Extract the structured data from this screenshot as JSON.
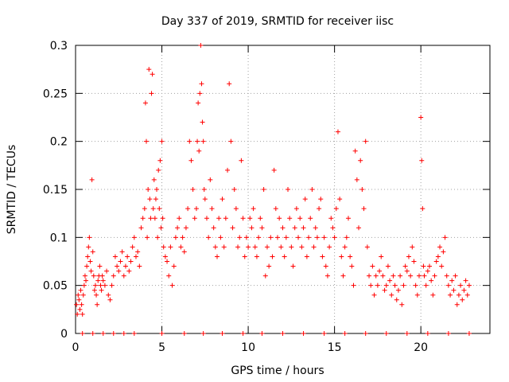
{
  "chart_data": {
    "type": "scatter",
    "title": "Day 337 of 2019, SRMTID for receiver iisc",
    "xlabel": "GPS time / hours",
    "ylabel": "SRMTID / TECUs",
    "xlim": [
      0,
      24
    ],
    "ylim": [
      0,
      0.3
    ],
    "xticks": [
      0,
      5,
      10,
      15,
      20
    ],
    "xtick_labels": [
      "0",
      "5",
      "10",
      "15",
      "20"
    ],
    "yticks": [
      0,
      0.05,
      0.1,
      0.15,
      0.2,
      0.25,
      0.3
    ],
    "ytick_labels": [
      "0",
      "0.05",
      "0.1",
      "0.15",
      "0.2",
      "0.25",
      "0.3"
    ],
    "grid": true,
    "marker": "+",
    "color": "#ff0000",
    "series": [
      {
        "name": "SRMTID",
        "points": [
          [
            0.05,
            0.03
          ],
          [
            0.1,
            0.02
          ],
          [
            0.15,
            0.04
          ],
          [
            0.2,
            0.035
          ],
          [
            0.25,
            0.025
          ],
          [
            0.3,
            0.045
          ],
          [
            0.35,
            0.03
          ],
          [
            0.4,
            0.02
          ],
          [
            0.45,
            0.04
          ],
          [
            0.5,
            0.05
          ],
          [
            0.55,
            0.06
          ],
          [
            0.6,
            0.055
          ],
          [
            0.65,
            0.07
          ],
          [
            0.7,
            0.08
          ],
          [
            0.75,
            0.09
          ],
          [
            0.8,
            0.1
          ],
          [
            0.85,
            0.075
          ],
          [
            0.9,
            0.065
          ],
          [
            0.95,
            0.16
          ],
          [
            1.0,
            0.085
          ],
          [
            1.05,
            0.06
          ],
          [
            1.1,
            0.045
          ],
          [
            1.15,
            0.05
          ],
          [
            1.2,
            0.04
          ],
          [
            1.25,
            0.03
          ],
          [
            1.3,
            0.055
          ],
          [
            1.35,
            0.06
          ],
          [
            1.4,
            0.07
          ],
          [
            1.45,
            0.05
          ],
          [
            1.5,
            0.045
          ],
          [
            1.55,
            0.06
          ],
          [
            1.6,
            0.055
          ],
          [
            1.7,
            0.05
          ],
          [
            1.8,
            0.065
          ],
          [
            1.9,
            0.04
          ],
          [
            2.0,
            0.035
          ],
          [
            2.1,
            0.05
          ],
          [
            2.2,
            0.06
          ],
          [
            2.3,
            0.08
          ],
          [
            2.4,
            0.07
          ],
          [
            2.5,
            0.065
          ],
          [
            2.6,
            0.075
          ],
          [
            2.7,
            0.085
          ],
          [
            2.8,
            0.06
          ],
          [
            2.9,
            0.07
          ],
          [
            3.0,
            0.08
          ],
          [
            3.1,
            0.065
          ],
          [
            3.2,
            0.075
          ],
          [
            3.3,
            0.09
          ],
          [
            3.4,
            0.1
          ],
          [
            3.5,
            0.08
          ],
          [
            3.6,
            0.085
          ],
          [
            3.7,
            0.07
          ],
          [
            3.8,
            0.11
          ],
          [
            3.9,
            0.12
          ],
          [
            4.0,
            0.13
          ],
          [
            4.05,
            0.24
          ],
          [
            4.1,
            0.2
          ],
          [
            4.15,
            0.1
          ],
          [
            4.2,
            0.15
          ],
          [
            4.25,
            0.275
          ],
          [
            4.3,
            0.14
          ],
          [
            4.35,
            0.12
          ],
          [
            4.4,
            0.25
          ],
          [
            4.45,
            0.27
          ],
          [
            4.5,
            0.13
          ],
          [
            4.55,
            0.16
          ],
          [
            4.6,
            0.12
          ],
          [
            4.65,
            0.14
          ],
          [
            4.7,
            0.15
          ],
          [
            4.75,
            0.1
          ],
          [
            4.8,
            0.17
          ],
          [
            4.85,
            0.13
          ],
          [
            4.9,
            0.18
          ],
          [
            4.95,
            0.11
          ],
          [
            5.0,
            0.2
          ],
          [
            5.05,
            0.12
          ],
          [
            5.1,
            0.09
          ],
          [
            5.2,
            0.08
          ],
          [
            5.3,
            0.075
          ],
          [
            5.4,
            0.06
          ],
          [
            5.5,
            0.09
          ],
          [
            5.6,
            0.05
          ],
          [
            5.7,
            0.07
          ],
          [
            5.8,
            0.1
          ],
          [
            5.9,
            0.11
          ],
          [
            6.0,
            0.12
          ],
          [
            6.1,
            0.09
          ],
          [
            6.2,
            0.1
          ],
          [
            6.3,
            0.085
          ],
          [
            6.4,
            0.11
          ],
          [
            6.5,
            0.13
          ],
          [
            6.6,
            0.2
          ],
          [
            6.7,
            0.18
          ],
          [
            6.8,
            0.15
          ],
          [
            6.9,
            0.12
          ],
          [
            7.0,
            0.13
          ],
          [
            7.05,
            0.2
          ],
          [
            7.1,
            0.24
          ],
          [
            7.15,
            0.19
          ],
          [
            7.2,
            0.25
          ],
          [
            7.25,
            0.3
          ],
          [
            7.3,
            0.26
          ],
          [
            7.35,
            0.22
          ],
          [
            7.4,
            0.2
          ],
          [
            7.45,
            0.15
          ],
          [
            7.5,
            0.14
          ],
          [
            7.6,
            0.12
          ],
          [
            7.7,
            0.1
          ],
          [
            7.8,
            0.16
          ],
          [
            7.9,
            0.13
          ],
          [
            8.0,
            0.11
          ],
          [
            8.1,
            0.09
          ],
          [
            8.2,
            0.08
          ],
          [
            8.3,
            0.12
          ],
          [
            8.4,
            0.1
          ],
          [
            8.5,
            0.14
          ],
          [
            8.6,
            0.09
          ],
          [
            8.7,
            0.12
          ],
          [
            8.8,
            0.17
          ],
          [
            8.9,
            0.26
          ],
          [
            9.0,
            0.2
          ],
          [
            9.1,
            0.11
          ],
          [
            9.2,
            0.15
          ],
          [
            9.3,
            0.13
          ],
          [
            9.4,
            0.09
          ],
          [
            9.5,
            0.1
          ],
          [
            9.6,
            0.18
          ],
          [
            9.7,
            0.12
          ],
          [
            9.8,
            0.08
          ],
          [
            9.9,
            0.1
          ],
          [
            10.0,
            0.09
          ],
          [
            10.1,
            0.12
          ],
          [
            10.2,
            0.11
          ],
          [
            10.3,
            0.13
          ],
          [
            10.4,
            0.09
          ],
          [
            10.5,
            0.08
          ],
          [
            10.6,
            0.1
          ],
          [
            10.7,
            0.12
          ],
          [
            10.8,
            0.11
          ],
          [
            10.9,
            0.15
          ],
          [
            11.0,
            0.06
          ],
          [
            11.1,
            0.09
          ],
          [
            11.2,
            0.07
          ],
          [
            11.3,
            0.1
          ],
          [
            11.4,
            0.08
          ],
          [
            11.5,
            0.17
          ],
          [
            11.6,
            0.13
          ],
          [
            11.7,
            0.1
          ],
          [
            11.8,
            0.12
          ],
          [
            11.9,
            0.09
          ],
          [
            12.0,
            0.11
          ],
          [
            12.1,
            0.08
          ],
          [
            12.2,
            0.1
          ],
          [
            12.3,
            0.15
          ],
          [
            12.4,
            0.12
          ],
          [
            12.5,
            0.09
          ],
          [
            12.6,
            0.07
          ],
          [
            12.7,
            0.11
          ],
          [
            12.8,
            0.13
          ],
          [
            12.9,
            0.1
          ],
          [
            13.0,
            0.12
          ],
          [
            13.1,
            0.09
          ],
          [
            13.2,
            0.11
          ],
          [
            13.3,
            0.14
          ],
          [
            13.4,
            0.08
          ],
          [
            13.5,
            0.1
          ],
          [
            13.6,
            0.12
          ],
          [
            13.7,
            0.15
          ],
          [
            13.8,
            0.09
          ],
          [
            13.9,
            0.11
          ],
          [
            14.0,
            0.1
          ],
          [
            14.1,
            0.13
          ],
          [
            14.2,
            0.14
          ],
          [
            14.3,
            0.08
          ],
          [
            14.4,
            0.1
          ],
          [
            14.5,
            0.07
          ],
          [
            14.6,
            0.06
          ],
          [
            14.7,
            0.09
          ],
          [
            14.8,
            0.12
          ],
          [
            14.9,
            0.11
          ],
          [
            15.0,
            0.1
          ],
          [
            15.1,
            0.13
          ],
          [
            15.2,
            0.21
          ],
          [
            15.3,
            0.14
          ],
          [
            15.4,
            0.08
          ],
          [
            15.5,
            0.06
          ],
          [
            15.6,
            0.09
          ],
          [
            15.7,
            0.1
          ],
          [
            15.8,
            0.12
          ],
          [
            15.9,
            0.08
          ],
          [
            16.0,
            0.07
          ],
          [
            16.1,
            0.05
          ],
          [
            16.2,
            0.19
          ],
          [
            16.3,
            0.16
          ],
          [
            16.4,
            0.11
          ],
          [
            16.5,
            0.18
          ],
          [
            16.6,
            0.15
          ],
          [
            16.7,
            0.13
          ],
          [
            16.8,
            0.2
          ],
          [
            16.9,
            0.09
          ],
          [
            17.0,
            0.06
          ],
          [
            17.1,
            0.05
          ],
          [
            17.2,
            0.07
          ],
          [
            17.3,
            0.04
          ],
          [
            17.4,
            0.06
          ],
          [
            17.5,
            0.05
          ],
          [
            17.6,
            0.065
          ],
          [
            17.7,
            0.08
          ],
          [
            17.8,
            0.06
          ],
          [
            17.9,
            0.045
          ],
          [
            18.0,
            0.05
          ],
          [
            18.1,
            0.07
          ],
          [
            18.2,
            0.055
          ],
          [
            18.3,
            0.04
          ],
          [
            18.4,
            0.06
          ],
          [
            18.5,
            0.05
          ],
          [
            18.6,
            0.035
          ],
          [
            18.7,
            0.045
          ],
          [
            18.8,
            0.06
          ],
          [
            18.9,
            0.03
          ],
          [
            19.0,
            0.05
          ],
          [
            19.1,
            0.07
          ],
          [
            19.2,
            0.065
          ],
          [
            19.3,
            0.08
          ],
          [
            19.4,
            0.06
          ],
          [
            19.5,
            0.09
          ],
          [
            19.6,
            0.075
          ],
          [
            19.7,
            0.05
          ],
          [
            19.8,
            0.04
          ],
          [
            19.9,
            0.06
          ],
          [
            20.0,
            0.225
          ],
          [
            20.05,
            0.18
          ],
          [
            20.1,
            0.13
          ],
          [
            20.15,
            0.07
          ],
          [
            20.2,
            0.06
          ],
          [
            20.3,
            0.05
          ],
          [
            20.4,
            0.065
          ],
          [
            20.5,
            0.07
          ],
          [
            20.6,
            0.055
          ],
          [
            20.7,
            0.04
          ],
          [
            20.8,
            0.06
          ],
          [
            20.9,
            0.075
          ],
          [
            21.0,
            0.08
          ],
          [
            21.1,
            0.09
          ],
          [
            21.2,
            0.07
          ],
          [
            21.3,
            0.085
          ],
          [
            21.4,
            0.1
          ],
          [
            21.5,
            0.06
          ],
          [
            21.6,
            0.05
          ],
          [
            21.7,
            0.04
          ],
          [
            21.8,
            0.055
          ],
          [
            21.9,
            0.045
          ],
          [
            22.0,
            0.06
          ],
          [
            22.1,
            0.03
          ],
          [
            22.2,
            0.04
          ],
          [
            22.3,
            0.05
          ],
          [
            22.4,
            0.035
          ],
          [
            22.5,
            0.045
          ],
          [
            22.6,
            0.055
          ],
          [
            22.7,
            0.04
          ],
          [
            22.8,
            0.05
          ],
          [
            0.4,
            0
          ],
          [
            1.0,
            0
          ],
          [
            1.6,
            0
          ],
          [
            2.2,
            0
          ],
          [
            2.8,
            0
          ],
          [
            3.4,
            0
          ],
          [
            5.0,
            0
          ],
          [
            6.3,
            0
          ],
          [
            7.4,
            0
          ],
          [
            8.5,
            0
          ],
          [
            9.7,
            0
          ],
          [
            10.8,
            0
          ],
          [
            12.0,
            0
          ],
          [
            13.2,
            0
          ],
          [
            14.4,
            0
          ],
          [
            15.6,
            0
          ],
          [
            16.8,
            0
          ],
          [
            18.0,
            0
          ],
          [
            19.2,
            0
          ],
          [
            20.4,
            0
          ],
          [
            21.6,
            0
          ],
          [
            22.8,
            0
          ]
        ]
      }
    ]
  }
}
